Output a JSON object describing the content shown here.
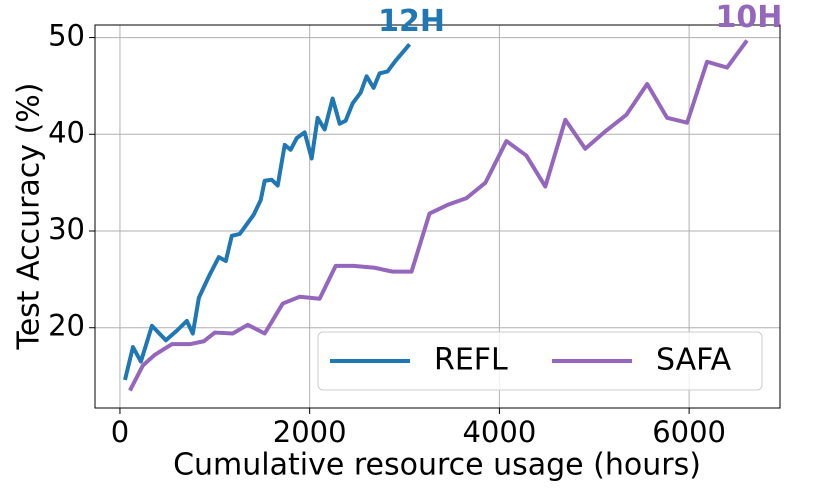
{
  "chart_data": {
    "type": "line",
    "xlabel": "Cumulative resource usage (hours)",
    "ylabel": "Test Accuracy (%)",
    "xlim": [
      -263,
      6958
    ],
    "ylim": [
      11.7,
      51.3
    ],
    "xticks": [
      0,
      2000,
      4000,
      6000
    ],
    "yticks": [
      20,
      30,
      40,
      50
    ],
    "grid": true,
    "legend": "lower right",
    "series": [
      {
        "name": "REFL",
        "color": "#1f77b4",
        "annotation": "12H",
        "x": [
          53,
          137,
          221,
          337,
          484,
          600,
          705,
          768,
          832,
          947,
          1042,
          1116,
          1179,
          1263,
          1411,
          1484,
          1526,
          1600,
          1663,
          1737,
          1800,
          1863,
          1947,
          2021,
          2084,
          2158,
          2242,
          2316,
          2379,
          2453,
          2537,
          2600,
          2674,
          2737,
          2821,
          2905,
          3053
        ],
        "values": [
          14.6,
          18.0,
          16.5,
          20.2,
          18.7,
          19.7,
          20.7,
          19.4,
          23.1,
          25.5,
          27.3,
          26.9,
          29.5,
          29.7,
          31.7,
          33.2,
          35.2,
          35.3,
          34.7,
          38.9,
          38.4,
          39.6,
          40.2,
          37.5,
          41.7,
          40.5,
          43.7,
          41.1,
          41.4,
          43.2,
          44.3,
          46.0,
          44.8,
          46.3,
          46.5,
          47.6,
          49.3
        ]
      },
      {
        "name": "SAFA",
        "color": "#9467bd",
        "annotation": "10H",
        "x": [
          105,
          242,
          368,
          547,
          737,
          884,
          1000,
          1189,
          1347,
          1526,
          1716,
          1895,
          2105,
          2274,
          2463,
          2684,
          2874,
          3074,
          3263,
          3453,
          3653,
          3853,
          4074,
          4284,
          4484,
          4695,
          4905,
          5116,
          5337,
          5558,
          5768,
          5979,
          6189,
          6400,
          6610
        ],
        "values": [
          13.5,
          16.1,
          17.2,
          18.3,
          18.3,
          18.6,
          19.5,
          19.4,
          20.3,
          19.4,
          22.5,
          23.2,
          23.0,
          26.4,
          26.4,
          26.2,
          25.8,
          25.8,
          31.8,
          32.7,
          33.4,
          35.0,
          39.3,
          37.8,
          34.6,
          41.5,
          38.5,
          40.3,
          42.0,
          45.2,
          41.7,
          41.2,
          47.5,
          46.9,
          49.7
        ]
      }
    ]
  }
}
